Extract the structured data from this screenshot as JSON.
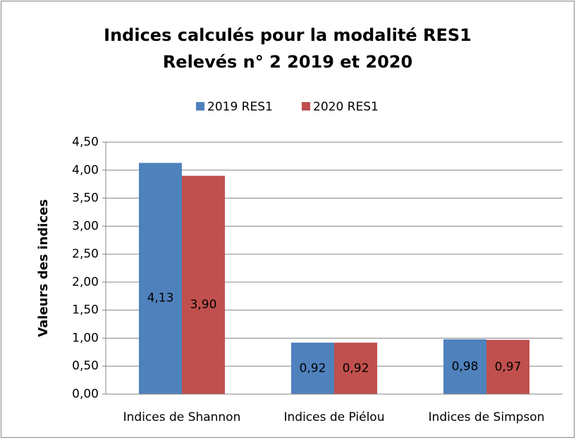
{
  "chart_data": {
    "type": "bar",
    "title": [
      "Indices calculés pour la modalité RES1",
      "Relevés n° 2 2019 et 2020"
    ],
    "y_label": "Valeurs des indices",
    "categories": [
      "Indices de Shannon",
      "Indices de Piélou",
      "Indices de Simpson"
    ],
    "series": [
      {
        "name": "2019 RES1",
        "color": "#4f81bd",
        "values": [
          4.13,
          0.92,
          0.98
        ],
        "value_labels": [
          "4,13",
          "0,92",
          "0,98"
        ]
      },
      {
        "name": "2020 RES1",
        "color": "#c0504d",
        "values": [
          3.9,
          0.92,
          0.97
        ],
        "value_labels": [
          "3,90",
          "0,92",
          "0,97"
        ]
      }
    ],
    "ylim": [
      0,
      4.5
    ],
    "yticks": [
      {
        "value": 0,
        "label": "0,00"
      },
      {
        "value": 0.5,
        "label": "0,50"
      },
      {
        "value": 1,
        "label": "1,00"
      },
      {
        "value": 1.5,
        "label": "1,50"
      },
      {
        "value": 2,
        "label": "2,00"
      },
      {
        "value": 2.5,
        "label": "2,50"
      },
      {
        "value": 3,
        "label": "3,00"
      },
      {
        "value": 3.5,
        "label": "3,50"
      },
      {
        "value": 4,
        "label": "4,00"
      },
      {
        "value": 4.5,
        "label": "4,50"
      }
    ],
    "grid": true,
    "legend": "top"
  }
}
